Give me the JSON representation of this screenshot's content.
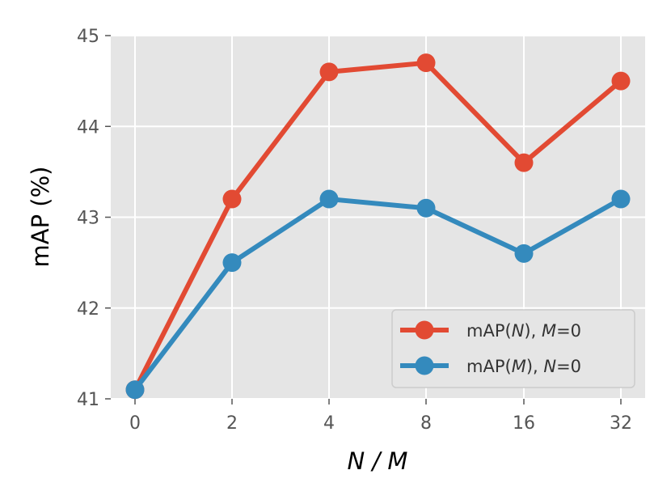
{
  "chart_data": {
    "type": "line",
    "xlabel": "N / M",
    "ylabel": "mAP (%)",
    "categories": [
      "0",
      "2",
      "4",
      "8",
      "16",
      "32"
    ],
    "ylim": [
      41,
      45
    ],
    "yticks": [
      "41",
      "42",
      "43",
      "44",
      "45"
    ],
    "grid": true,
    "legend_position": "lower-right",
    "series": [
      {
        "name": "mAP(N), M=0",
        "color": "#E24A33",
        "values": [
          41.1,
          43.2,
          44.6,
          44.7,
          43.6,
          44.5
        ]
      },
      {
        "name": "mAP(M), N=0",
        "color": "#348ABD",
        "values": [
          41.1,
          42.5,
          43.2,
          43.1,
          42.6,
          43.2
        ]
      }
    ],
    "legend": [
      {
        "prefix": "mAP(",
        "var1": "N",
        "mid": "), ",
        "var2": "M",
        "suffix": "=0"
      },
      {
        "prefix": "mAP(",
        "var1": "M",
        "mid": "), ",
        "var2": "N",
        "suffix": "=0"
      }
    ]
  }
}
